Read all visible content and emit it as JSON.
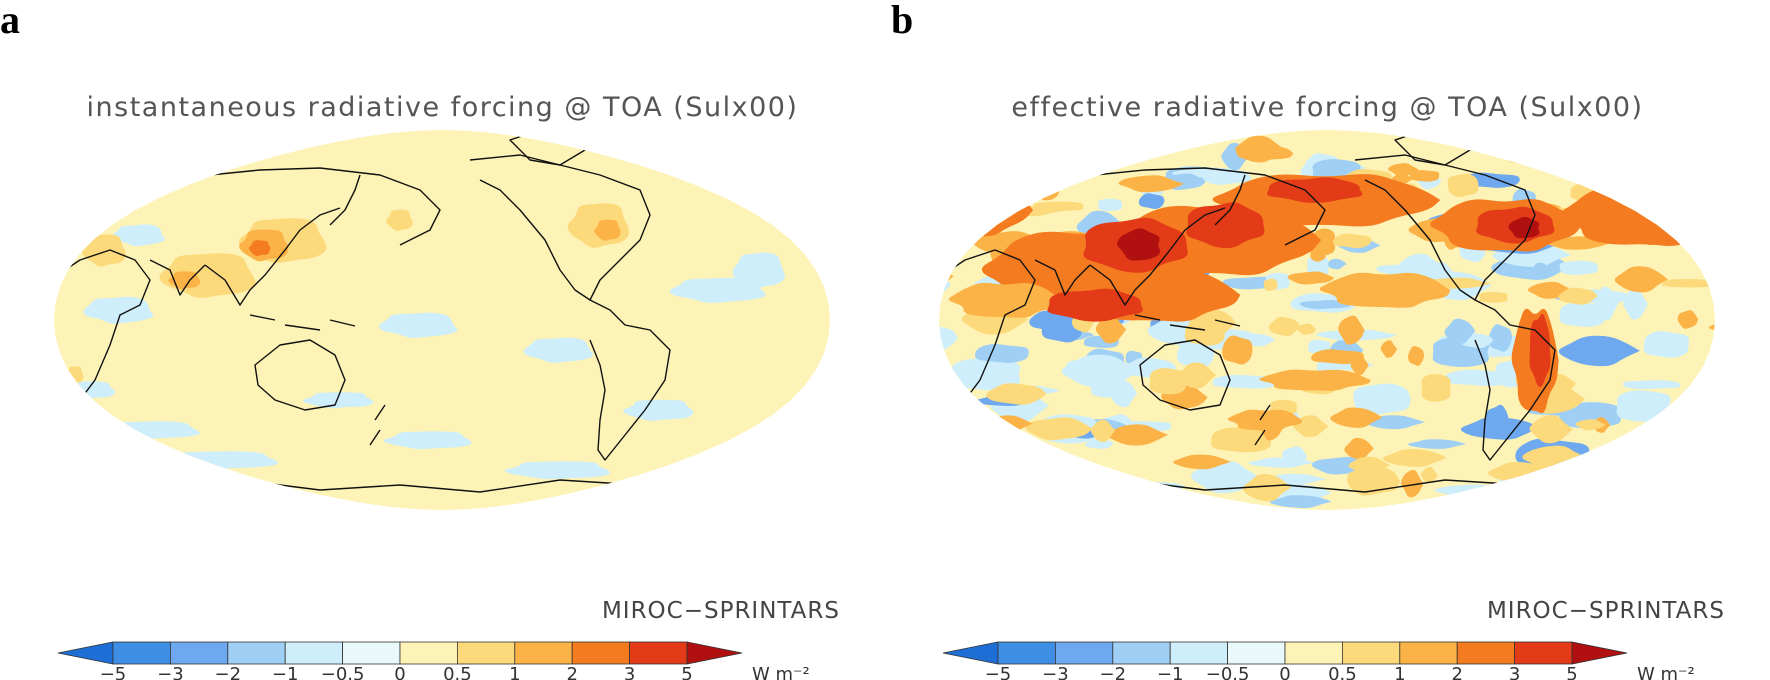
{
  "panels": [
    {
      "letter": "a",
      "title": "instantaneous radiative forcing @ TOA (Sulx00)",
      "model": "MIROC−SPRINTARS",
      "field": "instantaneous"
    },
    {
      "letter": "b",
      "title": "effective radiative forcing @ TOA (Sulx00)",
      "model": "MIROC−SPRINTARS",
      "field": "effective"
    }
  ],
  "colorbar": {
    "ticks": [
      "−5",
      "−3",
      "−2",
      "−1",
      "−0.5",
      "0",
      "0.5",
      "1",
      "2",
      "3",
      "5"
    ],
    "unit": "W m⁻²",
    "colors": [
      "#1d6fd6",
      "#3f8ee6",
      "#6ea8ef",
      "#9fcff5",
      "#cdeefa",
      "#e8f8fb",
      "#fdf3b6",
      "#fcd97a",
      "#fbb246",
      "#f47b20",
      "#e33a18",
      "#b0100f"
    ]
  }
}
